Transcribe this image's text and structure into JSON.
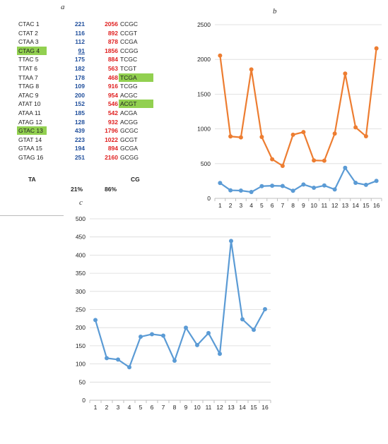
{
  "panel_letters": {
    "a": "a",
    "b": "b",
    "c": "c"
  },
  "table": {
    "rows": [
      {
        "ta_name": "CTAC  1",
        "ta_value": "221",
        "cg_value": "2056",
        "cg_name": "CCGC"
      },
      {
        "ta_name": "CTAT  2",
        "ta_value": "116",
        "cg_value": "892",
        "cg_name": "CCGT"
      },
      {
        "ta_name": "CTAA  3",
        "ta_value": "112",
        "cg_value": "878",
        "cg_name": "CCGA"
      },
      {
        "ta_name": "CTAG  4",
        "ta_value": "91",
        "cg_value": "1856",
        "cg_name": "CCGG",
        "ta_highlight": true,
        "ta_underline": true
      },
      {
        "ta_name": "TTAC  5",
        "ta_value": "175",
        "cg_value": "884",
        "cg_name": "TCGC"
      },
      {
        "ta_name": "TTAT  6",
        "ta_value": "182",
        "cg_value": "563",
        "cg_name": "TCGT"
      },
      {
        "ta_name": "TTAA  7",
        "ta_value": "178",
        "cg_value": "468",
        "cg_name": "TCGA",
        "cg_highlight": true
      },
      {
        "ta_name": "TTAG  8",
        "ta_value": "109",
        "cg_value": "916",
        "cg_name": "TCGG"
      },
      {
        "ta_name": "ATAC  9",
        "ta_value": "200",
        "cg_value": "954",
        "cg_name": "ACGC"
      },
      {
        "ta_name": "ATAT 10",
        "ta_value": "152",
        "cg_value": "546",
        "cg_name": "ACGT",
        "cg_highlight": true
      },
      {
        "ta_name": "ATAA 11",
        "ta_value": "185",
        "cg_value": "542",
        "cg_name": "ACGA"
      },
      {
        "ta_name": "ATAG 12",
        "ta_value": "128",
        "cg_value": "932",
        "cg_name": "ACGG"
      },
      {
        "ta_name": "GTAC 13",
        "ta_value": "439",
        "cg_value": "1796",
        "cg_name": "GCGC",
        "ta_highlight": true
      },
      {
        "ta_name": "GTAT 14",
        "ta_value": "223",
        "cg_value": "1022",
        "cg_name": "GCGT"
      },
      {
        "ta_name": "GTAA 15",
        "ta_value": "194",
        "cg_value": "894",
        "cg_name": "GCGA"
      },
      {
        "ta_name": "GTAG 16",
        "ta_value": "251",
        "cg_value": "2160",
        "cg_name": "GCGG"
      }
    ],
    "ta_label": "TA",
    "cg_label": "CG",
    "ta_percent": "21%",
    "cg_percent": "86%"
  },
  "chart_data": [
    {
      "type": "line",
      "x": [
        1,
        2,
        3,
        4,
        5,
        6,
        7,
        8,
        9,
        10,
        11,
        12,
        13,
        14,
        15,
        16
      ],
      "series": [
        {
          "values": [
            221,
            116,
            112,
            91,
            175,
            182,
            178,
            109,
            200,
            152,
            185,
            128,
            439,
            223,
            194,
            251
          ],
          "color": "#5b9bd5"
        },
        {
          "values": [
            2056,
            892,
            878,
            1856,
            884,
            563,
            468,
            916,
            954,
            546,
            542,
            932,
            1796,
            1022,
            894,
            2160
          ],
          "color": "#ed7d31"
        }
      ],
      "ylim": [
        0,
        2500
      ],
      "yticks": [
        0,
        500,
        1000,
        1500,
        2000,
        2500
      ],
      "grid": true,
      "legend": "none"
    },
    {
      "type": "line",
      "x": [
        1,
        2,
        3,
        4,
        5,
        6,
        7,
        8,
        9,
        10,
        11,
        12,
        13,
        14,
        15,
        16
      ],
      "series": [
        {
          "values": [
            221,
            116,
            112,
            91,
            175,
            182,
            178,
            109,
            200,
            152,
            185,
            128,
            439,
            223,
            194,
            251
          ],
          "color": "#5b9bd5"
        }
      ],
      "ylim": [
        0,
        500
      ],
      "yticks": [
        0,
        50,
        100,
        150,
        200,
        250,
        300,
        350,
        400,
        450,
        500
      ],
      "grid": true,
      "legend": "none"
    }
  ]
}
